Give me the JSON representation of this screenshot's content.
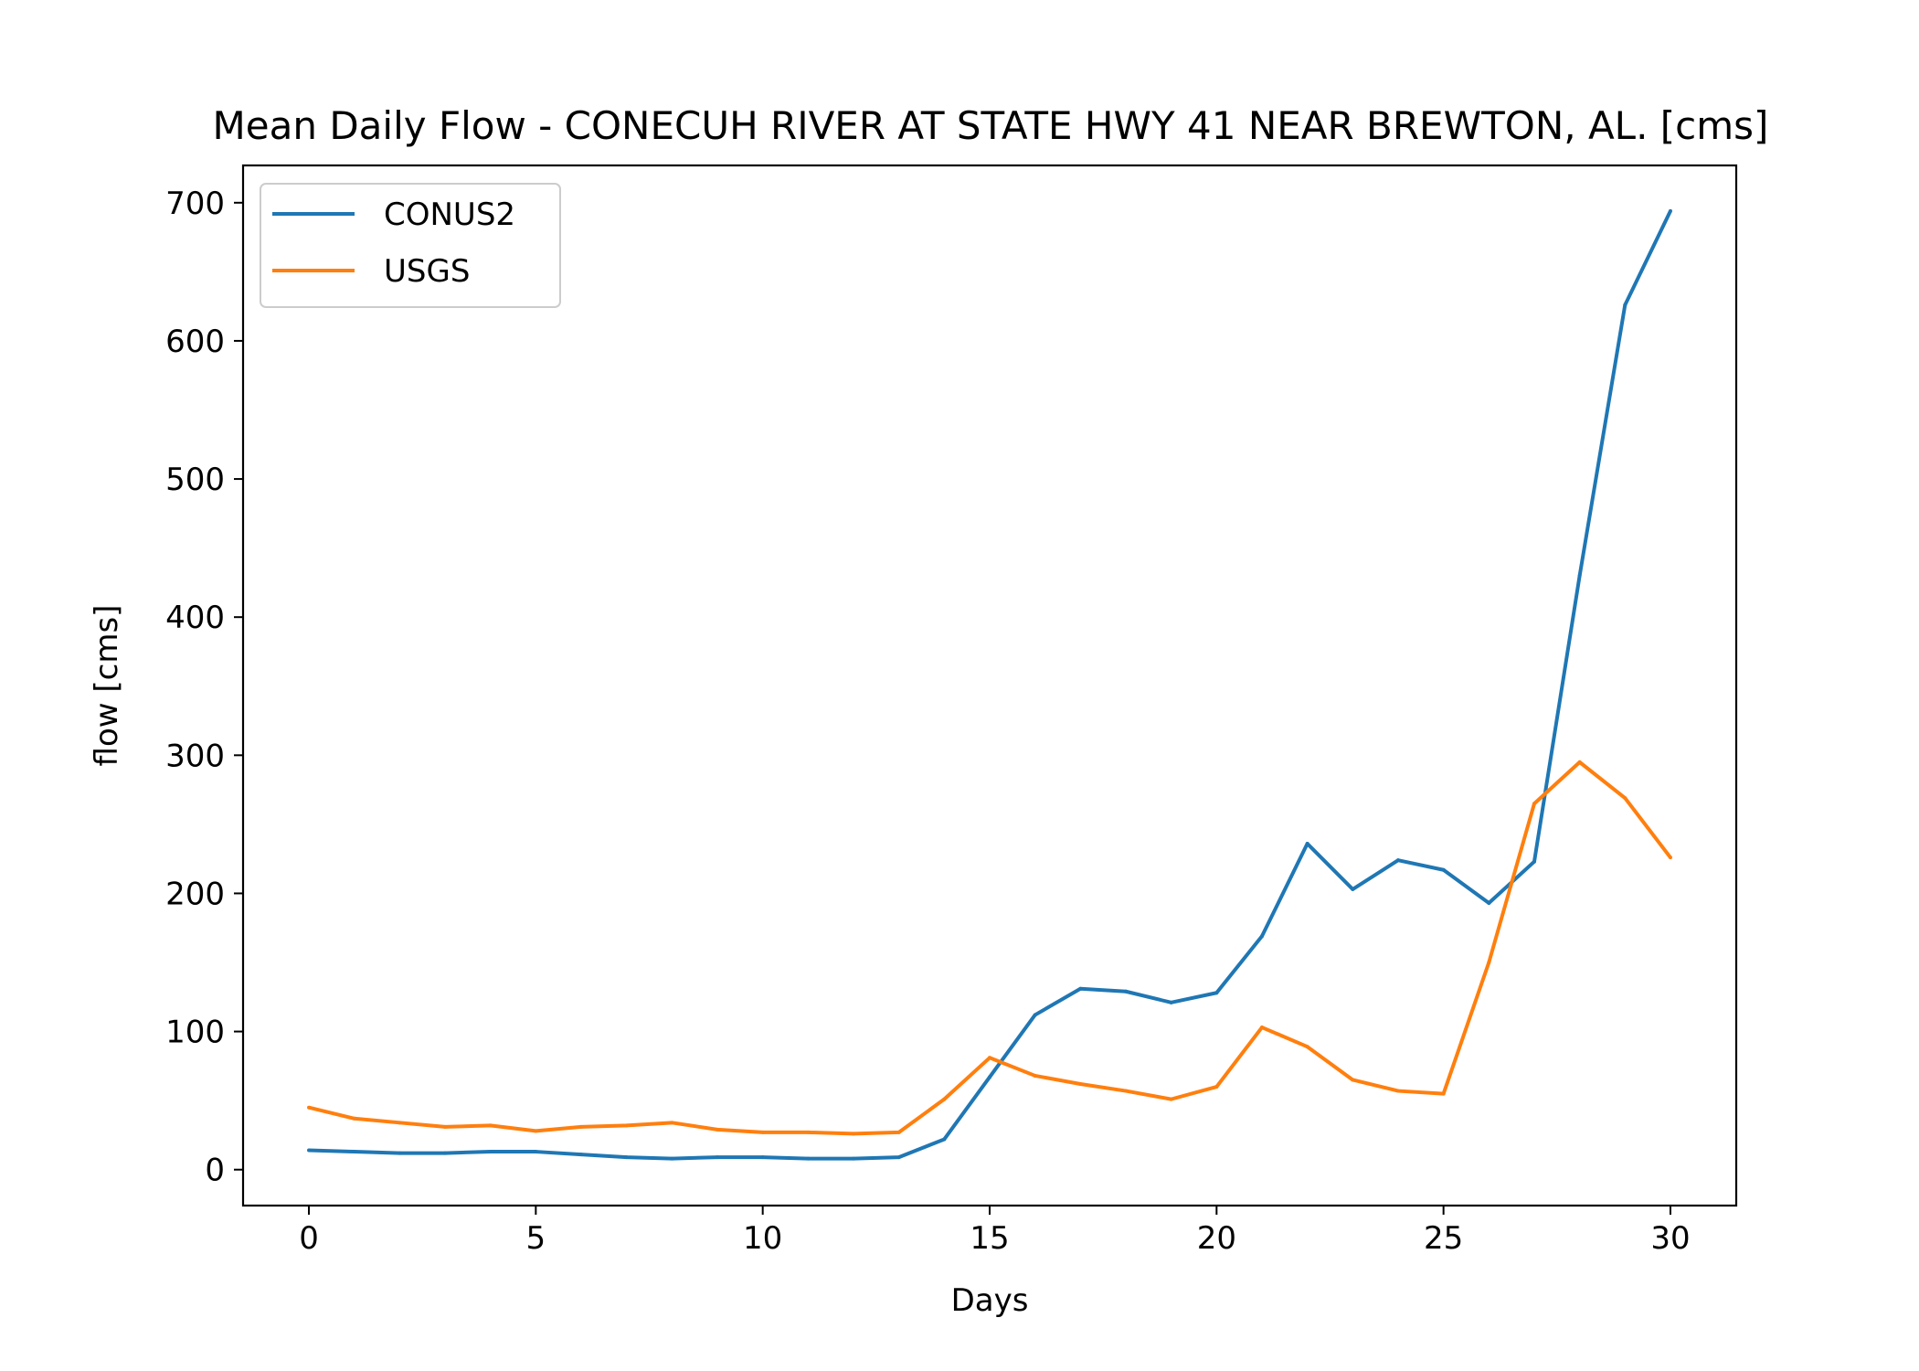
{
  "chart_data": {
    "type": "line",
    "title": "Mean Daily Flow - CONECUH RIVER AT STATE HWY 41 NEAR BREWTON, AL. [cms]",
    "xlabel": "Days",
    "ylabel": "flow [cms]",
    "xlim": [
      -1.45,
      31.45
    ],
    "ylim": [
      -26,
      727
    ],
    "xticks": [
      0,
      5,
      10,
      15,
      20,
      25,
      30
    ],
    "yticks": [
      0,
      100,
      200,
      300,
      400,
      500,
      600,
      700
    ],
    "grid": false,
    "legend": "upper-left",
    "x": [
      0,
      1,
      2,
      3,
      4,
      5,
      6,
      7,
      8,
      9,
      10,
      11,
      12,
      13,
      14,
      15,
      16,
      17,
      18,
      19,
      20,
      21,
      22,
      23,
      24,
      25,
      26,
      27,
      28,
      29,
      30
    ],
    "series": [
      {
        "name": "CONUS2",
        "color": "#1f77b4",
        "values": [
          14,
          13,
          12,
          12,
          13,
          13,
          11,
          9,
          8,
          9,
          9,
          8,
          8,
          9,
          22,
          67,
          112,
          131,
          129,
          121,
          128,
          169,
          236,
          203,
          224,
          217,
          193,
          223,
          430,
          626,
          694
        ]
      },
      {
        "name": "USGS",
        "color": "#ff7f0e",
        "values": [
          45,
          37,
          34,
          31,
          32,
          28,
          31,
          32,
          34,
          29,
          27,
          27,
          26,
          27,
          51,
          81,
          68,
          62,
          57,
          51,
          60,
          103,
          89,
          65,
          57,
          55,
          150,
          265,
          295,
          269,
          226
        ]
      }
    ]
  }
}
